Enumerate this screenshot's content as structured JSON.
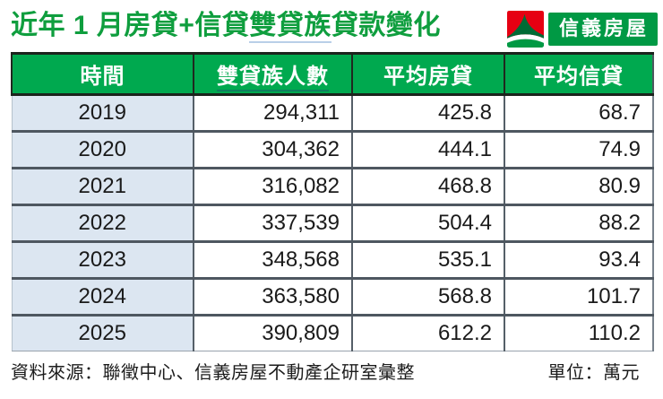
{
  "title": {
    "pre": "近年 1 月房貸+信貸",
    "underlined": "雙貸族",
    "post": "貸款變化",
    "full": "近年 1 月房貸+信貸雙貸族貸款變化"
  },
  "logo": {
    "brand": "信義房屋",
    "mark": "sinyi-mountain-person-icon"
  },
  "chart_data": {
    "type": "table",
    "title": "近年 1 月房貸+信貸雙貸族貸款變化",
    "columns": [
      "時間",
      "雙貸族人數",
      "平均房貸",
      "平均信貸"
    ],
    "rows": [
      [
        "2019",
        "294,311",
        "425.8",
        "68.7"
      ],
      [
        "2020",
        "304,362",
        "444.1",
        "74.9"
      ],
      [
        "2021",
        "316,082",
        "468.8",
        "80.9"
      ],
      [
        "2022",
        "337,539",
        "504.4",
        "88.2"
      ],
      [
        "2023",
        "348,568",
        "535.1",
        "93.4"
      ],
      [
        "2024",
        "363,580",
        "568.8",
        "101.7"
      ],
      [
        "2025",
        "390,809",
        "612.2",
        "110.2"
      ]
    ],
    "categories": [
      "2019",
      "2020",
      "2021",
      "2022",
      "2023",
      "2024",
      "2025"
    ],
    "series": [
      {
        "name": "雙貸族人數",
        "values": [
          294311,
          304362,
          316082,
          337539,
          348568,
          363580,
          390809
        ]
      },
      {
        "name": "平均房貸",
        "values": [
          425.8,
          444.1,
          468.8,
          504.4,
          535.1,
          568.8,
          612.2
        ]
      },
      {
        "name": "平均信貸",
        "values": [
          68.7,
          74.9,
          80.9,
          88.2,
          93.4,
          101.7,
          110.2
        ]
      }
    ],
    "unit": "萬元",
    "source": "聯徵中心、信義房屋不動產企研室彙整"
  },
  "footer": {
    "source_label": "資料來源：聯徵中心、信義房屋不動產企研室彙整",
    "unit_label": "單位：萬元"
  },
  "colors": {
    "header_green": "#00a94f",
    "title_green": "#0f9e3e",
    "logo_green": "#009944",
    "logo_red": "#e60012",
    "logo_dark_green": "#006b35",
    "row_blue": "#dce6f1"
  }
}
